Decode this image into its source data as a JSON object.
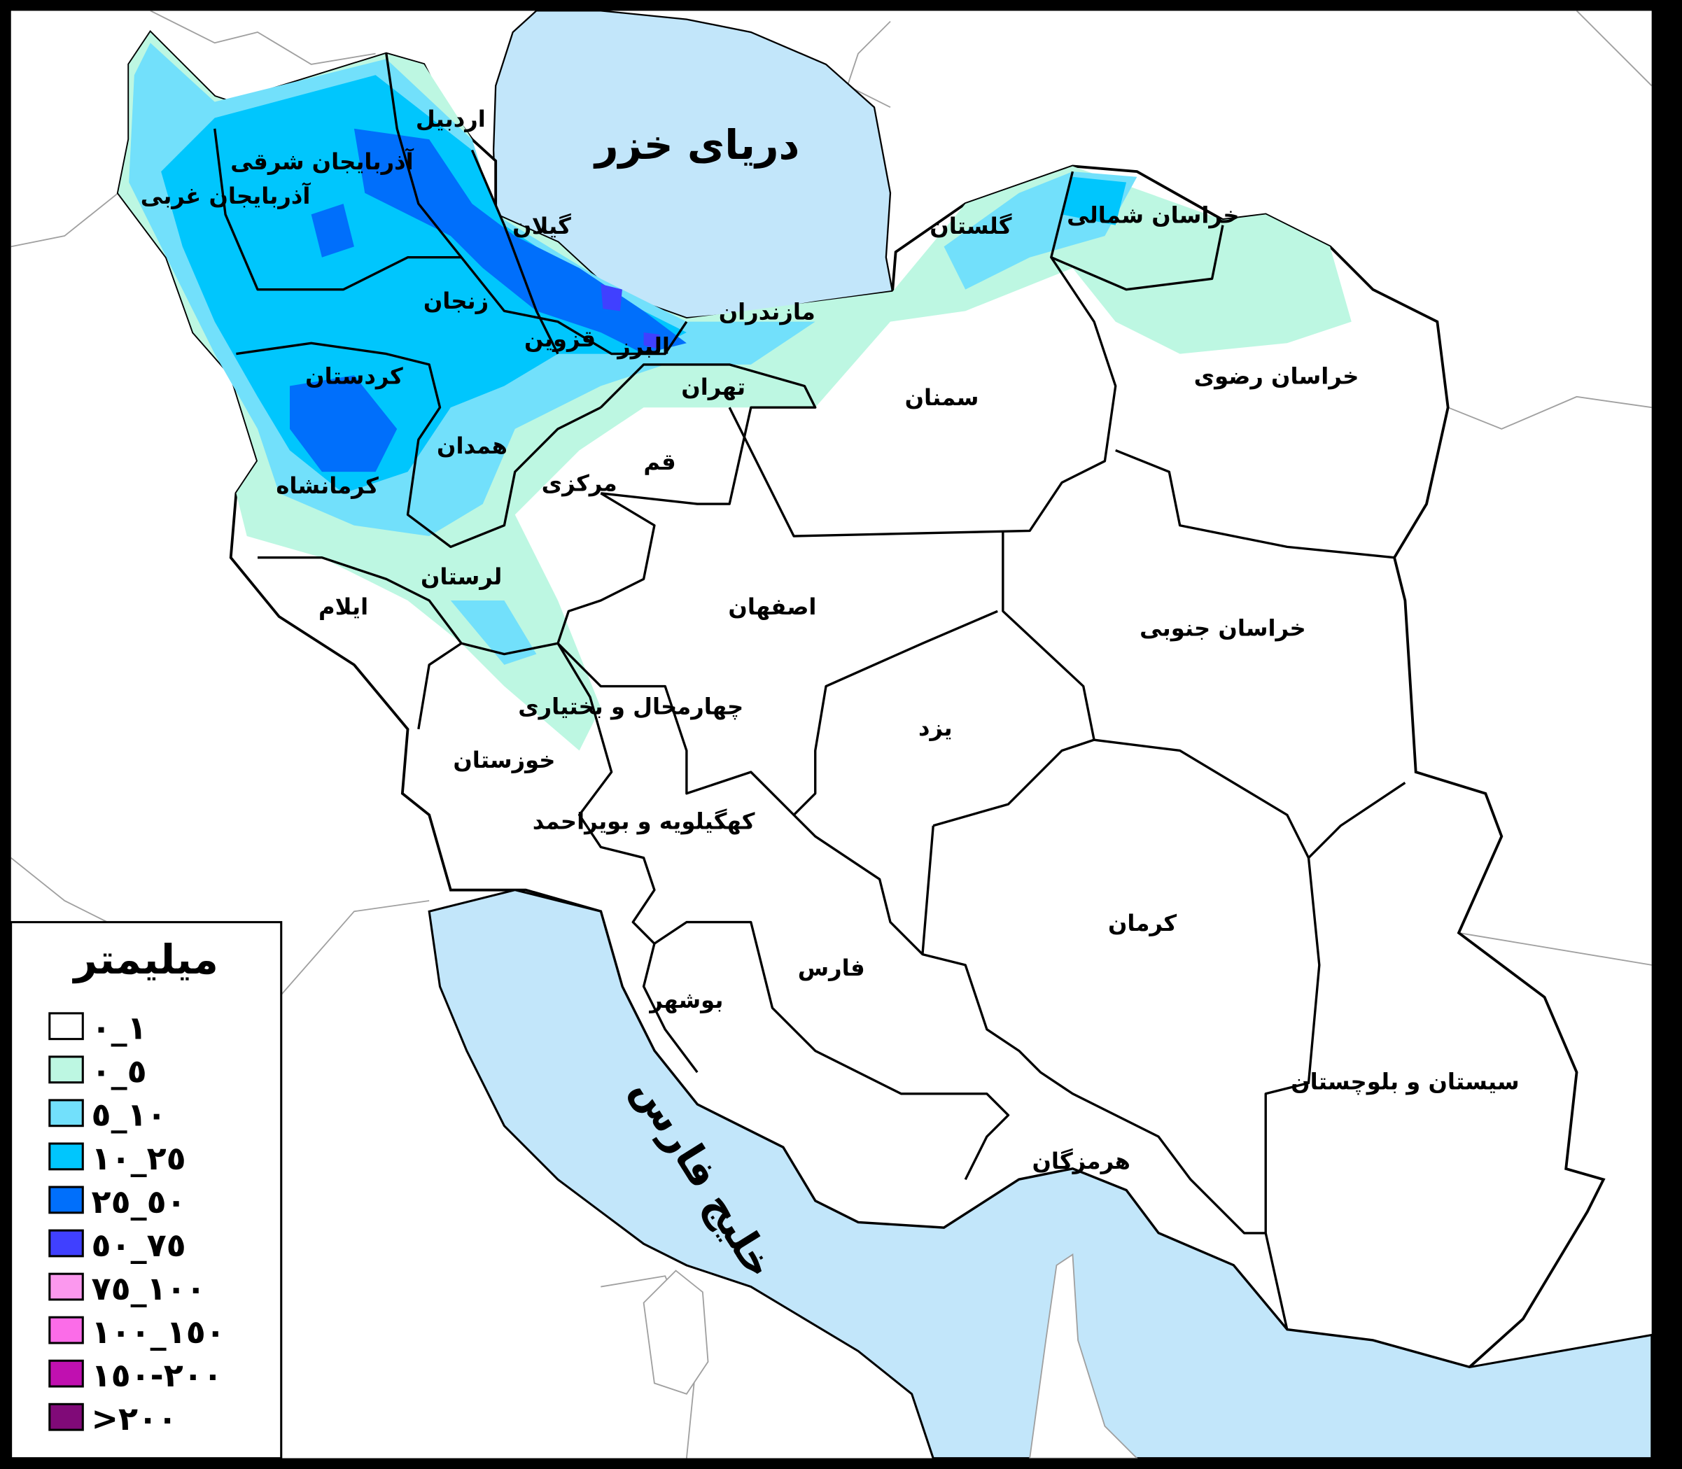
{
  "map": {
    "seas": {
      "caspian": "دریای خزر",
      "persian_gulf": "خلیج فارس"
    },
    "provinces": [
      "اردبیل",
      "آذربایجان شرقی",
      "آذربایجان غربی",
      "گیلان",
      "خراسان شمالی",
      "گلستان",
      "مازندران",
      "زنجان",
      "قزوین",
      "البرز",
      "تهران",
      "کردستان",
      "سمنان",
      "خراسان رضوی",
      "همدان",
      "قم",
      "مرکزی",
      "کرمانشاه",
      "لرستان",
      "ایلام",
      "اصفهان",
      "خراسان جنوبی",
      "چهارمحال و بختیاری",
      "یزد",
      "خوزستان",
      "کهگیلویه و بویراحمد",
      "کرمان",
      "فارس",
      "بوشهر",
      "سیستان و بلوچستان",
      "هرمزگان"
    ],
    "colors": {
      "sea": "#c2e6fa",
      "land": "#ffffff",
      "frame": "#000000",
      "neighbor_border": "#a0a0a0"
    }
  },
  "legend": {
    "title": "میلیمتر",
    "items": [
      {
        "label": "٠_١",
        "color": "#ffffff"
      },
      {
        "label": "٠_٥",
        "color": "#bdf7e2"
      },
      {
        "label": "٥_١٠",
        "color": "#72e0fb"
      },
      {
        "label": "١٠_٢٥",
        "color": "#00c6fd"
      },
      {
        "label": "٢٥_٥٠",
        "color": "#006ffb"
      },
      {
        "label": "٥٠_٧٥",
        "color": "#4040ff"
      },
      {
        "label": "٧٥_١٠٠",
        "color": "#fb98ee"
      },
      {
        "label": "١٠٠_١٥٠",
        "color": "#fb6ce8"
      },
      {
        "label": "١٥٠-٢٠٠",
        "color": "#c010b0"
      },
      {
        "label": ">٢٠٠",
        "color": "#800a78"
      }
    ]
  }
}
